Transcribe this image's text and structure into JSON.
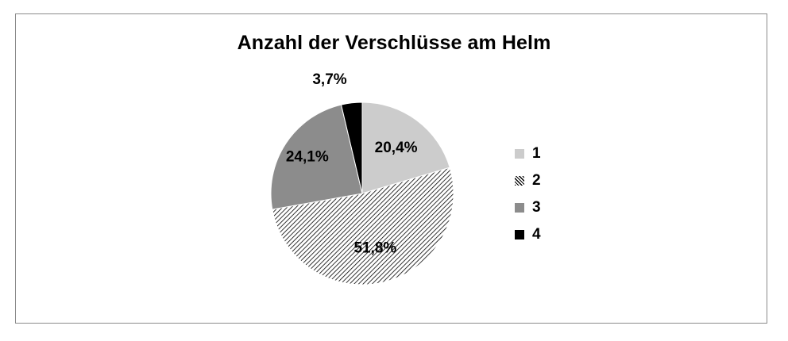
{
  "chart_data": {
    "type": "pie",
    "title": "Anzahl der Verschlüsse am Helm",
    "categories": [
      "1",
      "2",
      "3",
      "4"
    ],
    "values": [
      20.4,
      51.8,
      24.1,
      3.7
    ],
    "data_labels": [
      "20,4%",
      "51,8%",
      "24,1%",
      "3,7%"
    ],
    "colors": [
      "#cccccc",
      "hatch-diagonal",
      "#8c8c8c",
      "#000000"
    ],
    "start_angle_deg": 0,
    "direction": "clockwise",
    "legend": {
      "placement": "right",
      "entries": [
        "1",
        "2",
        "3",
        "4"
      ]
    }
  }
}
